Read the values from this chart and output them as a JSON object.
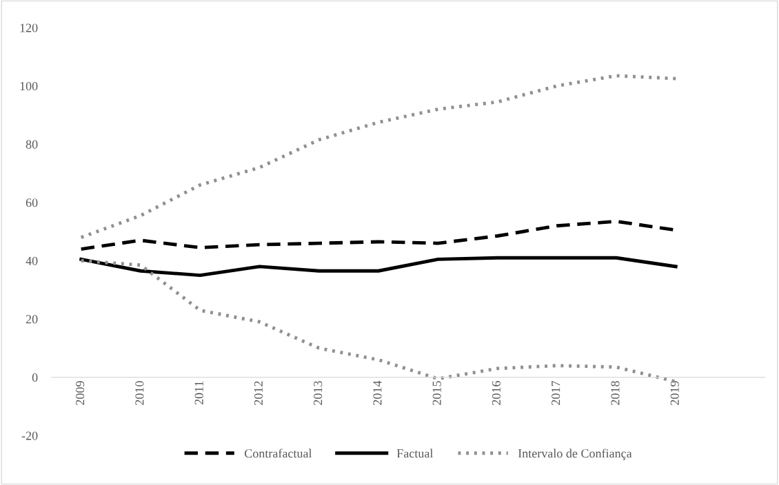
{
  "chart_data": {
    "type": "line",
    "categories": [
      "2009",
      "2010",
      "2011",
      "2012",
      "2013",
      "2014",
      "2015",
      "2016",
      "2017",
      "2018",
      "2019",
      null
    ],
    "series": [
      {
        "name": "Contrafactual",
        "color": "#000000",
        "line_style": "dashed",
        "values": [
          44,
          47,
          44.5,
          45.5,
          46,
          46.5,
          46,
          48.5,
          52,
          53.5,
          50.5,
          null
        ]
      },
      {
        "name": "Factual",
        "color": "#000000",
        "line_style": "solid",
        "values": [
          40.5,
          36.5,
          35,
          38,
          36.5,
          36.5,
          40.5,
          41,
          41,
          41,
          38,
          null
        ]
      },
      {
        "name": "Intervalo de Confiança",
        "color": "#909090",
        "line_style": "dotted",
        "values": [
          48,
          55.5,
          66,
          72,
          81.5,
          87.5,
          92,
          94.5,
          100,
          103.5,
          102.5,
          null
        ]
      },
      {
        "color": "#909090",
        "line_style": "dotted",
        "values": [
          40,
          38.5,
          23,
          19,
          10,
          6,
          -0.5,
          3,
          4,
          3.5,
          -1.5,
          null
        ]
      }
    ],
    "ylim": [
      -20,
      120
    ],
    "yticks": [
      -20,
      0,
      20,
      40,
      60,
      80,
      100,
      120
    ],
    "grid": false,
    "legend": "bottom",
    "marker": "none"
  }
}
